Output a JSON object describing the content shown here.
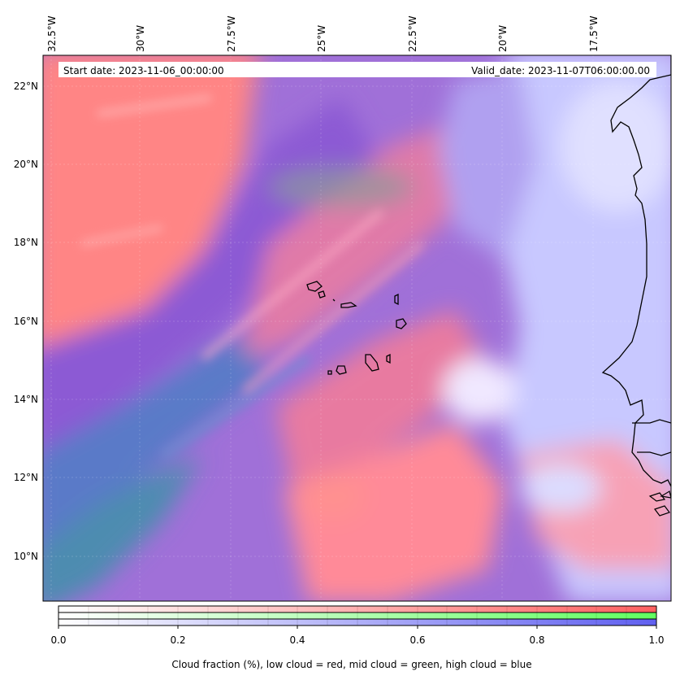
{
  "map": {
    "start_date_label": "Start date: 2023-11-06_00:00:00",
    "valid_date_label": "Valid_date: 2023-11-07T06:00:00.00",
    "longitude_labels": [
      "32.5°W",
      "30°W",
      "27.5°W",
      "25°W",
      "22.5°W",
      "20°W",
      "17.5°W"
    ],
    "latitude_labels": [
      "22°N",
      "20°N",
      "18°N",
      "16°N",
      "14°N",
      "12°N",
      "10°N"
    ],
    "colors": {
      "low_cloud": "#ff8080",
      "mid_cloud": "#80ff80",
      "high_cloud": "#8080ff",
      "overlap_purple": "#8a5ad8",
      "coastline": "#000000"
    }
  },
  "colorbar": {
    "tick_labels": [
      "0.0",
      "0.2",
      "0.4",
      "0.6",
      "0.8",
      "1.0"
    ],
    "caption": "Cloud fraction (%), low cloud = red, mid cloud = green, high cloud = blue",
    "rows": [
      "low cloud",
      "mid cloud",
      "high cloud"
    ]
  }
}
